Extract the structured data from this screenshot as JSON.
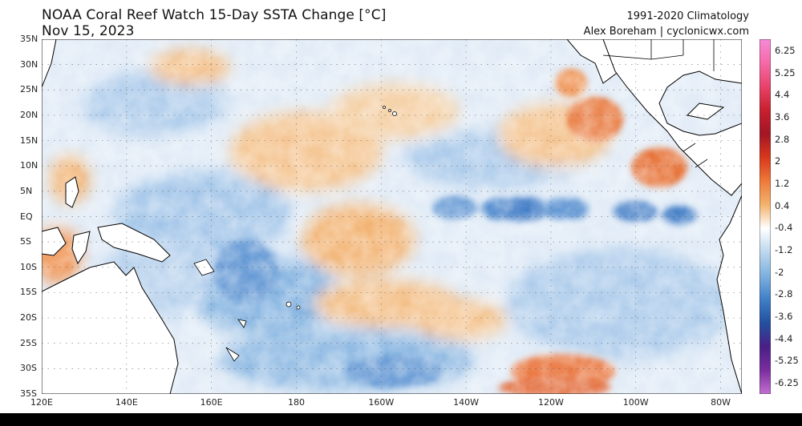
{
  "header": {
    "title": "NOAA Coral Reef Watch 15-Day SSTA Change [°C]",
    "date": "Nov 15, 2023",
    "climatology": "1991-2020 Climatology",
    "credit": "Alex Boreham | cyclonicwx.com"
  },
  "map": {
    "lon_range": [
      120,
      285
    ],
    "lat_range": [
      -35,
      35
    ],
    "lat_labels": [
      "35N",
      "30N",
      "25N",
      "20N",
      "15N",
      "10N",
      "5N",
      "EQ",
      "5S",
      "10S",
      "15S",
      "20S",
      "25S",
      "30S",
      "35S"
    ],
    "lon_labels": [
      "120E",
      "140E",
      "160E",
      "180",
      "160W",
      "140W",
      "120W",
      "100W",
      "80W"
    ],
    "land_color": "#ffffff",
    "coast_color": "#000000"
  },
  "colorbar": {
    "labels": [
      "6.25",
      "5.25",
      "4.4",
      "3.6",
      "2.8",
      "2",
      "1.2",
      "0.4",
      "-0.4",
      "-1.2",
      "-2",
      "-2.8",
      "-3.6",
      "-4.4",
      "-5.25",
      "-6.25"
    ],
    "colors": [
      "#f58ad8",
      "#f56aa8",
      "#e8436a",
      "#c8202e",
      "#a31525",
      "#d8381c",
      "#ee7a3a",
      "#f3b36e",
      "#ffffff",
      "#bcd7ee",
      "#7fb1df",
      "#3f7fc7",
      "#23509e",
      "#4a1f86",
      "#7a2e9e",
      "#c36fd2"
    ]
  }
}
